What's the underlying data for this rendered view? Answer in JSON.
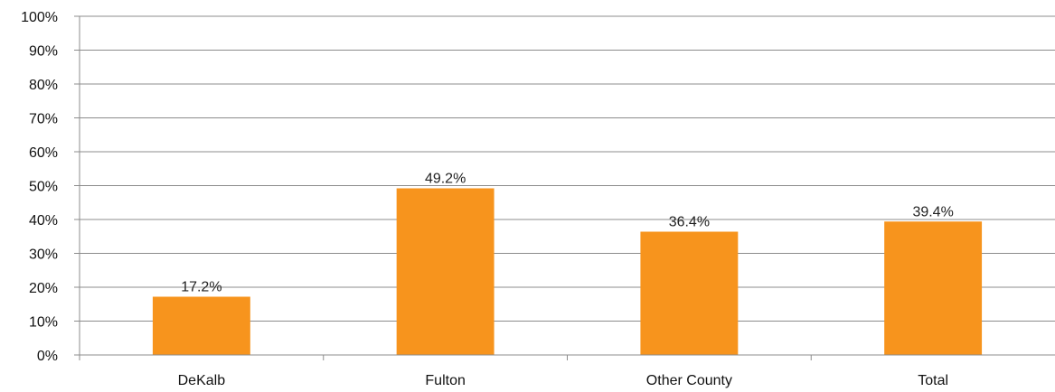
{
  "chart_data": {
    "type": "bar",
    "title": "",
    "xlabel": "",
    "ylabel": "",
    "categories": [
      "DeKalb",
      "Fulton",
      "Other County",
      "Total"
    ],
    "values": [
      17.2,
      49.2,
      36.4,
      39.4
    ],
    "data_labels": [
      "17.2%",
      "49.2%",
      "36.4%",
      "39.4%"
    ],
    "ylim": [
      0,
      100
    ],
    "y_ticks": [
      0,
      10,
      20,
      30,
      40,
      50,
      60,
      70,
      80,
      90,
      100
    ],
    "y_tick_labels": [
      "0%",
      "10%",
      "20%",
      "30%",
      "40%",
      "50%",
      "60%",
      "70%",
      "80%",
      "90%",
      "100%"
    ],
    "grid": true,
    "legend": "none",
    "bar_color": "#F7941D",
    "grid_color": "#8C8C8C"
  }
}
